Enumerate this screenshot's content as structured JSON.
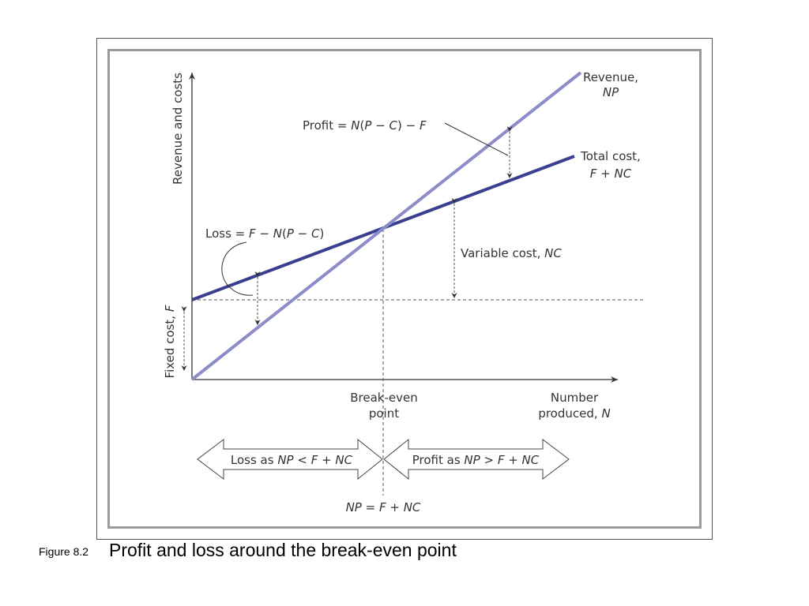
{
  "figure": {
    "number_label": "Figure 8.2",
    "title": "Profit and loss around the break-even point"
  },
  "diagram": {
    "y_axis_label": "Revenue and costs",
    "x_axis_label_line1": "Number",
    "x_axis_label_line2": "produced, ",
    "x_axis_label_var": "N",
    "fixed_cost_label": "Fixed cost, ",
    "fixed_cost_var": "F",
    "revenue_label_line1": "Revenue,",
    "revenue_label_line2": "NP",
    "total_cost_label_line1": "Total cost,",
    "total_cost_label_line2": "F + NC",
    "profit_formula": {
      "prefix": "Profit = ",
      "N": "N",
      "open": "(",
      "P": "P",
      "minus": " − ",
      "C": "C",
      "close": ") − ",
      "F": "F"
    },
    "loss_formula": {
      "prefix": "Loss = ",
      "F": "F",
      "minus1": " − ",
      "N": "N",
      "open": "(",
      "P": "P",
      "minus2": " − ",
      "C": "C",
      "close": ")"
    },
    "variable_cost_label": "Variable cost, ",
    "variable_cost_var": "NC",
    "break_even_line1": "Break-even",
    "break_even_line2": "point",
    "loss_region": {
      "prefix": "Loss as ",
      "NP": "NP",
      "op": " < ",
      "rhs": "F + NC"
    },
    "profit_region": {
      "prefix": "Profit as ",
      "NP": "NP",
      "op": " > ",
      "rhs": "F + NC"
    },
    "equation": {
      "NP": "NP",
      "eq": " = ",
      "rhs": "F + NC"
    },
    "colors": {
      "revenue_line": "#8c8cc8",
      "total_cost_line": "#3a3f8f",
      "axis": "#333333",
      "dashed": "#555555",
      "frame_outer": "#555555",
      "frame_inner": "#9a9a9a"
    }
  }
}
